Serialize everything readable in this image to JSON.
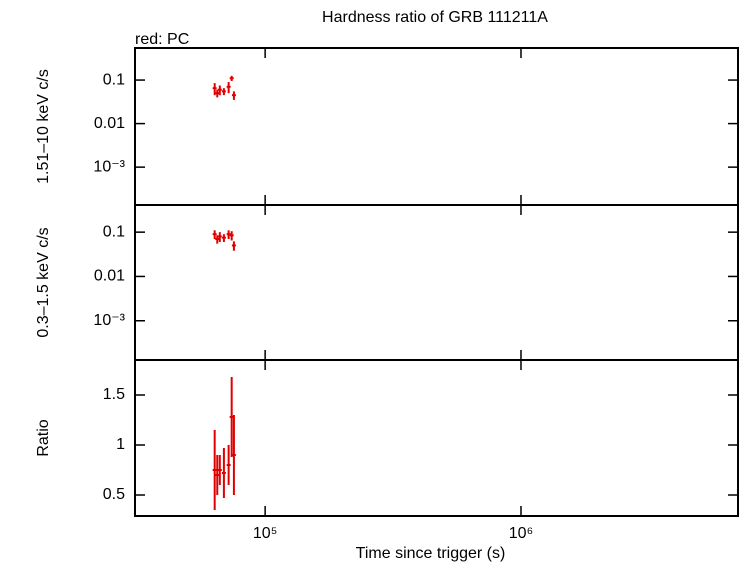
{
  "chart_data": [
    {
      "type": "errorbar",
      "title": "Hardness ratio of GRB 111211A",
      "subtitle": "red: PC",
      "ylabel": "1.51–10 keV c/s",
      "xscale": "log",
      "yscale": "log",
      "color": "#e00000",
      "xlim": [
        31000,
        7050000
      ],
      "ylim": [
        0.000135,
        0.545
      ],
      "yticks": [
        {
          "value": 0.1,
          "label": "0.1"
        },
        {
          "value": 0.01,
          "label": "0.01"
        },
        {
          "value": 0.001,
          "label": "10⁻³"
        }
      ],
      "x": [
        63500,
        65000,
        66500,
        69000,
        72000,
        74000,
        75500
      ],
      "values": [
        0.065,
        0.05,
        0.06,
        0.055,
        0.07,
        0.11,
        0.045
      ],
      "errors": [
        0.02,
        0.01,
        0.015,
        0.01,
        0.02,
        0.015,
        0.01
      ]
    },
    {
      "type": "errorbar",
      "ylabel": "0.3–1.5 keV c/s",
      "xscale": "log",
      "yscale": "log",
      "color": "#e00000",
      "xlim": [
        31000,
        7050000
      ],
      "ylim": [
        0.00013,
        0.41
      ],
      "yticks": [
        {
          "value": 0.1,
          "label": "0.1"
        },
        {
          "value": 0.01,
          "label": "0.01"
        },
        {
          "value": 0.001,
          "label": "10⁻³"
        }
      ],
      "x": [
        63500,
        65000,
        66500,
        69000,
        72000,
        74000,
        75500
      ],
      "values": [
        0.09,
        0.07,
        0.08,
        0.075,
        0.09,
        0.085,
        0.05
      ],
      "errors": [
        0.02,
        0.015,
        0.02,
        0.015,
        0.02,
        0.02,
        0.012
      ]
    },
    {
      "type": "errorbar",
      "ylabel": "Ratio",
      "xlabel": "Time since trigger (s)",
      "xscale": "log",
      "color": "#e00000",
      "xlim": [
        31000,
        7050000
      ],
      "ylim": [
        0.29,
        1.85
      ],
      "yticks": [
        1.5,
        1,
        0.5
      ],
      "xticks": [
        {
          "value": 100000,
          "label": "10⁵"
        },
        {
          "value": 1000000,
          "label": "10⁶"
        }
      ],
      "x": [
        63500,
        65000,
        66500,
        69000,
        72000,
        74000,
        75500
      ],
      "values": [
        0.75,
        0.7,
        0.75,
        0.72,
        0.8,
        1.28,
        0.9
      ],
      "errors": [
        0.4,
        0.2,
        0.15,
        0.25,
        0.2,
        0.4,
        0.4
      ]
    }
  ]
}
